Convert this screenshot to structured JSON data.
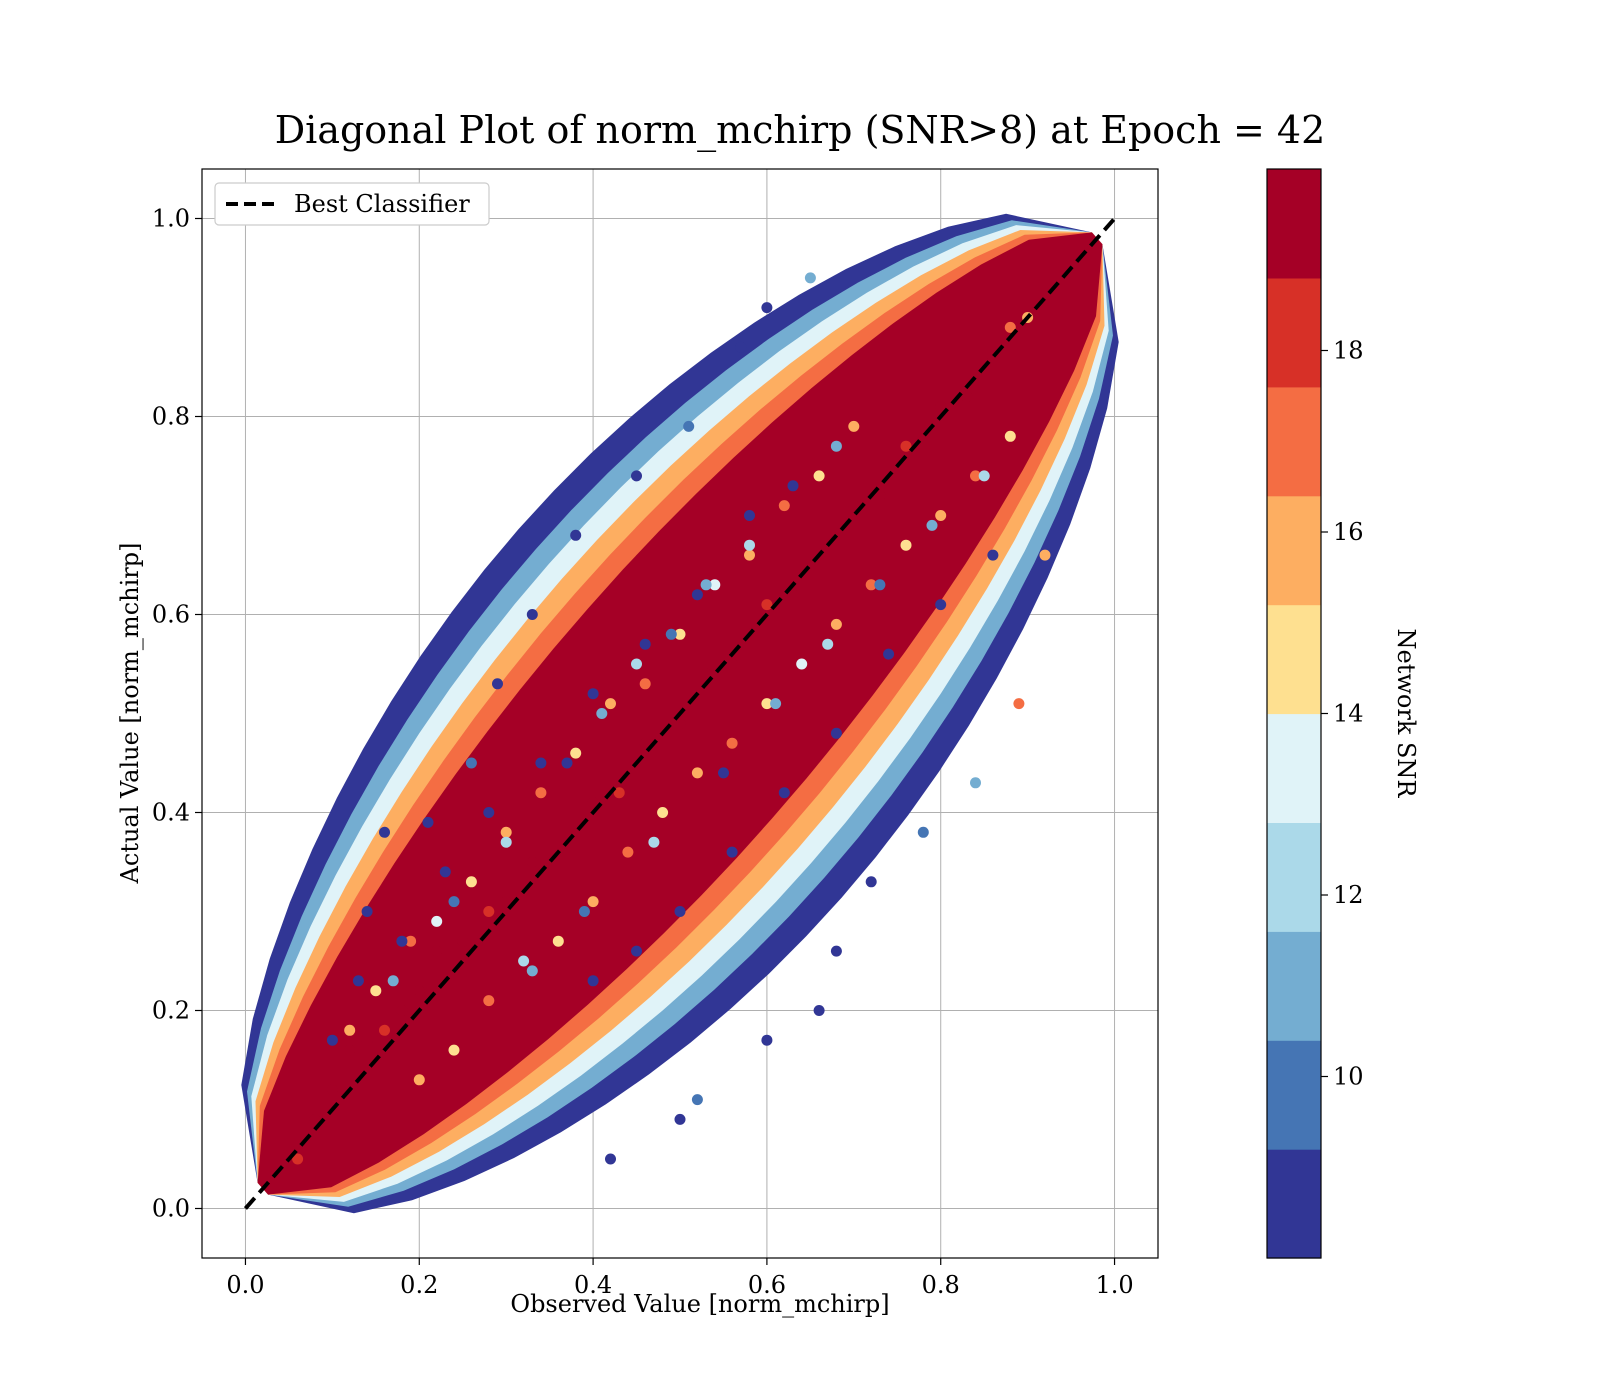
{
  "chart_data": {
    "type": "scatter",
    "title": "Diagonal Plot of norm_mchirp (SNR>8) at Epoch = 42",
    "xlabel": "Observed Value [norm_mchirp]",
    "ylabel": "Actual Value [norm_mchirp]",
    "xlim": [
      -0.05,
      1.05
    ],
    "ylim": [
      -0.05,
      1.05
    ],
    "xticks": [
      0.0,
      0.2,
      0.4,
      0.6,
      0.8,
      1.0
    ],
    "yticks": [
      0.0,
      0.2,
      0.4,
      0.6,
      0.8,
      1.0
    ],
    "xtick_labels": [
      "0.0",
      "0.2",
      "0.4",
      "0.6",
      "0.8",
      "1.0"
    ],
    "ytick_labels": [
      "0.0",
      "0.2",
      "0.4",
      "0.6",
      "0.8",
      "1.0"
    ],
    "grid": true,
    "legend": {
      "placement": "upper-left",
      "entries": [
        {
          "label": "Best Classifier",
          "style": "dashed",
          "color": "#000000"
        }
      ]
    },
    "reference_line": {
      "x": [
        0.0,
        1.0
      ],
      "y": [
        0.0,
        1.0
      ]
    },
    "colorbar": {
      "label": "Network SNR",
      "range": [
        8,
        20
      ],
      "tick_values": [
        10,
        12,
        14,
        16,
        18
      ],
      "tick_labels": [
        "10",
        "12",
        "14",
        "16",
        "18"
      ],
      "colormap": "RdYlBu_r",
      "colors": [
        "#313695",
        "#4575b4",
        "#74add1",
        "#abd9e9",
        "#e0f3f8",
        "#fee090",
        "#fdae61",
        "#f46d43",
        "#d73027",
        "#a50026"
      ]
    },
    "points_observed": [
      0.05,
      0.06,
      0.08,
      0.1,
      0.12,
      0.14,
      0.16,
      0.18,
      0.2,
      0.22,
      0.25,
      0.28,
      0.3,
      0.33,
      0.36,
      0.4,
      0.43,
      0.46,
      0.5,
      0.53,
      0.56,
      0.6,
      0.63,
      0.66,
      0.7,
      0.73,
      0.76,
      0.8,
      0.83,
      0.86,
      0.88,
      0.9,
      0.12,
      0.15,
      0.19,
      0.22,
      0.26,
      0.3,
      0.34,
      0.38,
      0.42,
      0.46,
      0.5,
      0.54,
      0.58,
      0.62,
      0.66,
      0.7,
      0.2,
      0.24,
      0.28,
      0.32,
      0.36,
      0.4,
      0.44,
      0.48,
      0.52,
      0.56,
      0.6,
      0.64,
      0.68,
      0.72,
      0.76,
      0.8,
      0.84,
      0.88,
      0.17,
      0.24,
      0.3,
      0.37,
      0.41,
      0.45,
      0.49,
      0.53,
      0.58,
      0.63,
      0.68,
      0.33,
      0.39,
      0.47,
      0.55,
      0.61,
      0.67,
      0.73,
      0.79,
      0.85,
      0.1,
      0.13,
      0.18,
      0.23,
      0.28,
      0.34,
      0.4,
      0.46,
      0.52,
      0.58,
      0.4,
      0.45,
      0.5,
      0.56,
      0.62,
      0.68,
      0.74,
      0.8,
      0.86,
      0.14,
      0.16,
      0.21,
      0.26,
      0.29,
      0.33,
      0.38,
      0.45,
      0.51,
      0.57,
      0.6,
      0.65,
      0.42,
      0.5,
      0.52,
      0.6,
      0.66,
      0.68,
      0.72,
      0.78,
      0.84,
      0.89,
      0.92
    ],
    "points_actual": [
      0.06,
      0.05,
      0.09,
      0.12,
      0.16,
      0.17,
      0.18,
      0.2,
      0.22,
      0.26,
      0.27,
      0.3,
      0.31,
      0.35,
      0.36,
      0.41,
      0.42,
      0.47,
      0.49,
      0.54,
      0.55,
      0.61,
      0.62,
      0.66,
      0.71,
      0.72,
      0.77,
      0.81,
      0.82,
      0.86,
      0.89,
      0.9,
      0.18,
      0.22,
      0.27,
      0.29,
      0.33,
      0.38,
      0.42,
      0.46,
      0.51,
      0.53,
      0.58,
      0.63,
      0.66,
      0.71,
      0.74,
      0.79,
      0.13,
      0.16,
      0.21,
      0.25,
      0.27,
      0.31,
      0.36,
      0.4,
      0.44,
      0.47,
      0.51,
      0.55,
      0.59,
      0.63,
      0.67,
      0.7,
      0.74,
      0.78,
      0.23,
      0.31,
      0.37,
      0.45,
      0.5,
      0.55,
      0.58,
      0.63,
      0.67,
      0.73,
      0.77,
      0.24,
      0.3,
      0.37,
      0.44,
      0.51,
      0.57,
      0.63,
      0.69,
      0.74,
      0.17,
      0.23,
      0.27,
      0.34,
      0.4,
      0.45,
      0.52,
      0.57,
      0.62,
      0.7,
      0.23,
      0.26,
      0.3,
      0.36,
      0.42,
      0.48,
      0.56,
      0.61,
      0.66,
      0.3,
      0.38,
      0.39,
      0.45,
      0.53,
      0.6,
      0.68,
      0.74,
      0.79,
      0.87,
      0.91,
      0.94,
      0.05,
      0.09,
      0.11,
      0.17,
      0.2,
      0.26,
      0.33,
      0.38,
      0.43,
      0.51,
      0.66
    ],
    "points_snr": [
      19,
      18,
      19,
      19,
      19,
      19,
      18,
      19,
      19,
      19,
      19,
      18,
      19,
      19,
      19,
      19,
      18,
      19,
      19,
      19,
      19,
      18,
      19,
      19,
      19,
      19,
      18,
      19,
      19,
      19,
      17,
      16,
      16,
      14,
      17,
      13,
      15,
      16,
      17,
      14,
      16,
      17,
      15,
      13,
      16,
      17,
      14,
      16,
      16,
      14,
      17,
      12,
      15,
      16,
      17,
      14,
      16,
      17,
      15,
      13,
      16,
      17,
      14,
      16,
      17,
      15,
      11,
      10,
      12,
      9,
      11,
      12,
      10,
      11,
      12,
      9,
      11,
      11,
      10,
      12,
      9,
      11,
      12,
      10,
      11,
      12,
      9,
      8,
      9,
      9,
      8,
      9,
      9,
      8,
      9,
      9,
      9,
      8,
      9,
      9,
      8,
      9,
      9,
      8,
      9,
      8,
      9,
      8,
      10,
      9,
      8,
      9,
      8,
      10,
      9,
      8,
      11,
      9,
      8,
      10,
      9,
      8,
      9,
      8,
      10,
      11,
      17,
      16
    ]
  }
}
